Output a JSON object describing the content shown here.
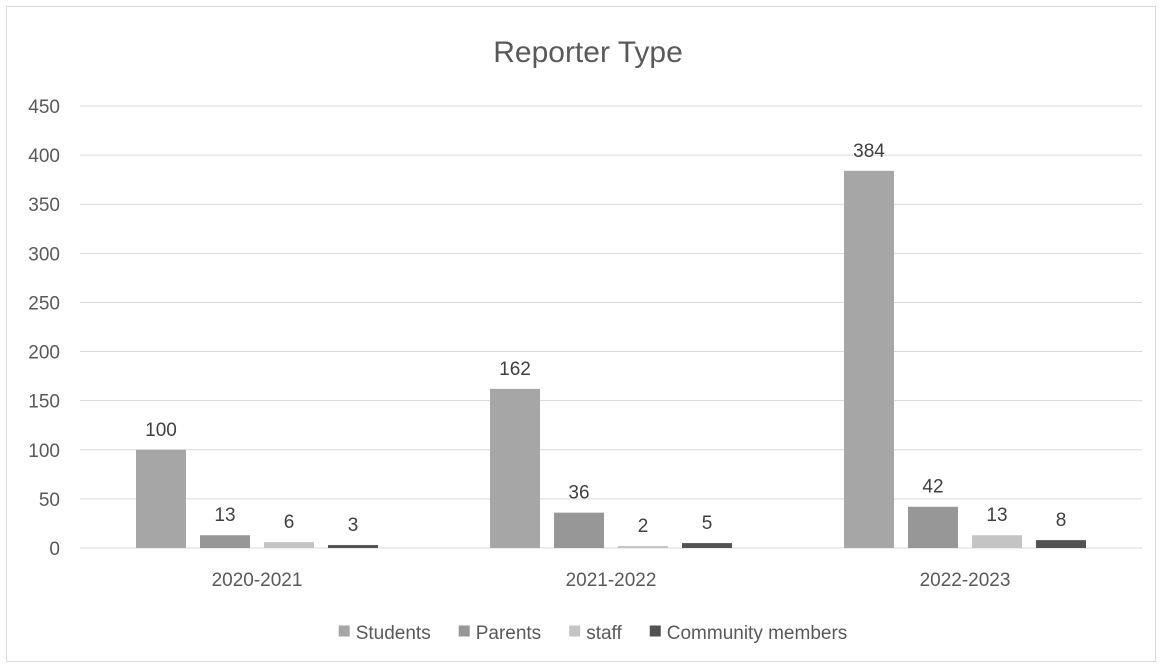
{
  "chart_data": {
    "type": "bar",
    "title": "Reporter Type",
    "xlabel": "",
    "ylabel": "",
    "categories": [
      "2020-2021",
      "2021-2022",
      "2022-2023"
    ],
    "series": [
      {
        "name": "Students",
        "values": [
          100,
          162,
          384
        ],
        "color": "#a6a6a6"
      },
      {
        "name": "Parents",
        "values": [
          13,
          36,
          42
        ],
        "color": "#979797"
      },
      {
        "name": "staff",
        "values": [
          6,
          2,
          13
        ],
        "color": "#c4c4c4"
      },
      {
        "name": "Community members",
        "values": [
          3,
          5,
          8
        ],
        "color": "#525252"
      }
    ],
    "ylim": [
      0,
      450
    ],
    "yticks": [
      0,
      50,
      100,
      150,
      200,
      250,
      300,
      350,
      400,
      450
    ],
    "grid": true,
    "legend": "bottom",
    "data_labels": true
  }
}
